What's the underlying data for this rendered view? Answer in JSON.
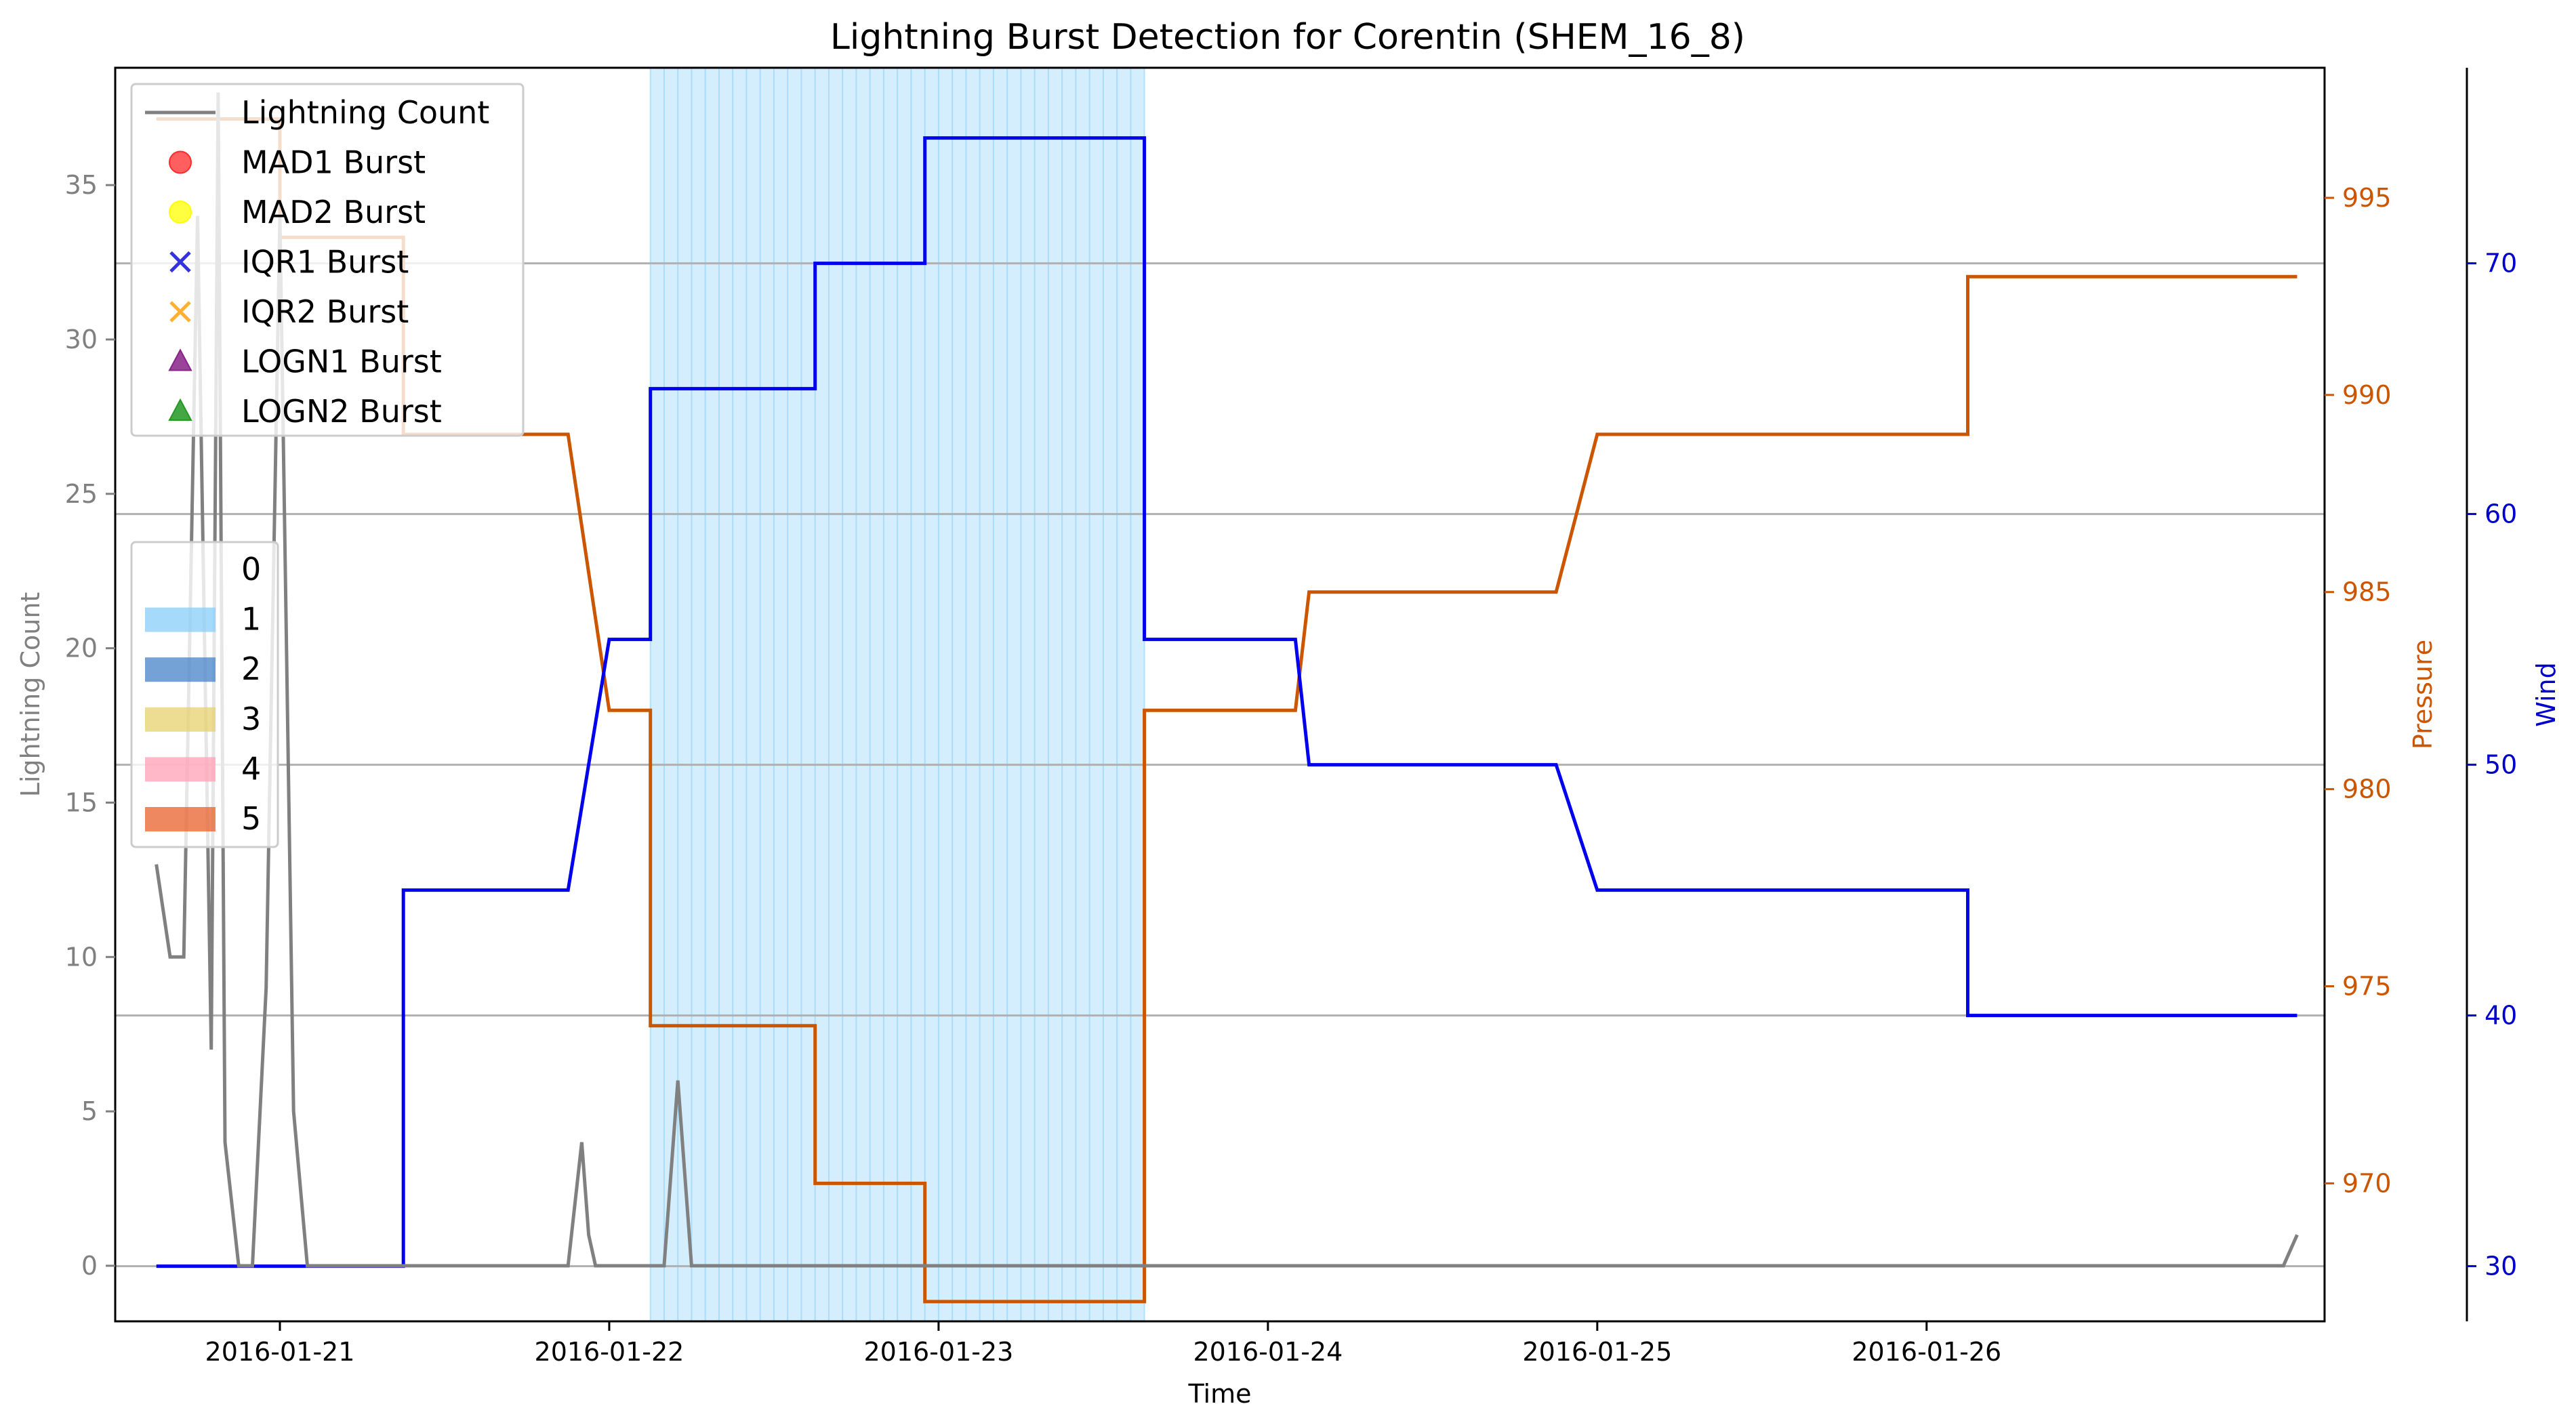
{
  "chart_data": {
    "type": "line",
    "title": "Lightning Burst Detection for Corentin (SHEM_16_8)",
    "xlabel": "Time",
    "ylabel_left": "Lightning Count",
    "ylabel_pressure": "Pressure",
    "ylabel_wind": "Wind",
    "x_ticks": [
      "2016-01-21",
      "2016-01-22",
      "2016-01-23",
      "2016-01-24",
      "2016-01-25",
      "2016-01-26"
    ],
    "x_range": [
      "2016-01-20 12:00",
      "2016-01-27 05:00"
    ],
    "y_left": {
      "range": [
        -1.8,
        38.8
      ],
      "ticks": [
        0,
        5,
        10,
        15,
        20,
        25,
        30,
        35
      ]
    },
    "y_pressure": {
      "range": [
        966.5,
        998.3
      ],
      "ticks": [
        970,
        975,
        980,
        985,
        990,
        995
      ]
    },
    "y_wind": {
      "range": [
        27.8,
        77.8
      ],
      "ticks": [
        30,
        40,
        50,
        60,
        70
      ]
    },
    "grid": "horizontal lines at wind ticks",
    "colors": {
      "lightning": "#808080",
      "pressure": "#cc5500",
      "wind": "#0000ee",
      "category1": "#87cefa",
      "category2": "#4682c8",
      "category3": "#e6d26e",
      "category4": "#ffa0b4",
      "category5": "#e8602c"
    },
    "category_shading": [
      {
        "category": 1,
        "start": "2016-01-22 03:00",
        "end": "2016-01-23 15:00"
      }
    ],
    "series": [
      {
        "name": "Lightning Count",
        "axis": "left",
        "x": [
          "2016-01-20 15:00",
          "2016-01-20 16:00",
          "2016-01-20 17:00",
          "2016-01-20 18:00",
          "2016-01-20 19:00",
          "2016-01-20 19:30",
          "2016-01-20 20:00",
          "2016-01-20 21:00",
          "2016-01-20 22:00",
          "2016-01-20 23:00",
          "2016-01-21 00:00",
          "2016-01-21 01:00",
          "2016-01-21 02:00",
          "2016-01-21 03:00",
          "2016-01-21 21:00",
          "2016-01-21 22:00",
          "2016-01-21 22:30",
          "2016-01-21 23:00",
          "2016-01-22 04:00",
          "2016-01-22 05:00",
          "2016-01-22 06:00",
          "2016-01-22 07:00",
          "2016-01-27 02:00",
          "2016-01-27 03:00"
        ],
        "values": [
          13,
          10,
          10,
          34,
          7,
          38,
          4,
          0,
          0,
          9,
          34,
          5,
          0,
          0,
          0,
          4,
          1,
          0,
          0,
          6,
          0,
          0,
          0,
          1
        ]
      },
      {
        "name": "Pressure",
        "axis": "pressure",
        "x": [
          "2016-01-20 15:00",
          "2016-01-20 24:00",
          "2016-01-21 00:00",
          "2016-01-21 09:00",
          "2016-01-21 09:00",
          "2016-01-21 21:00",
          "2016-01-22 00:00",
          "2016-01-22 03:00",
          "2016-01-22 03:00",
          "2016-01-22 15:00",
          "2016-01-22 15:00",
          "2016-01-22 23:00",
          "2016-01-22 23:00",
          "2016-01-23 15:00",
          "2016-01-23 15:00",
          "2016-01-24 02:00",
          "2016-01-24 03:00",
          "2016-01-24 21:00",
          "2016-01-25 00:00",
          "2016-01-26 03:00",
          "2016-01-26 03:00",
          "2016-01-27 03:00"
        ],
        "values": [
          997,
          997,
          994,
          994,
          989,
          989,
          982,
          982,
          974,
          974,
          970,
          970,
          967,
          967,
          982,
          982,
          985,
          985,
          989,
          989,
          993,
          993
        ]
      },
      {
        "name": "Wind",
        "axis": "wind",
        "x": [
          "2016-01-20 15:00",
          "2016-01-21 09:00",
          "2016-01-21 09:00",
          "2016-01-21 21:00",
          "2016-01-22 00:00",
          "2016-01-22 03:00",
          "2016-01-22 03:00",
          "2016-01-22 15:00",
          "2016-01-22 15:00",
          "2016-01-22 23:00",
          "2016-01-22 23:00",
          "2016-01-23 15:00",
          "2016-01-23 15:00",
          "2016-01-24 02:00",
          "2016-01-24 03:00",
          "2016-01-24 21:00",
          "2016-01-25 00:00",
          "2016-01-26 03:00",
          "2016-01-26 03:00",
          "2016-01-27 03:00"
        ],
        "values": [
          30,
          30,
          45,
          45,
          55,
          55,
          65,
          65,
          70,
          70,
          75,
          75,
          55,
          55,
          50,
          50,
          45,
          45,
          40,
          40
        ]
      }
    ],
    "legend_markers": {
      "placement": "top-left",
      "entries": [
        {
          "label": "Lightning Count",
          "marker": "line",
          "color": "#808080"
        },
        {
          "label": "MAD1 Burst",
          "marker": "circle",
          "color": "#ff2a2a"
        },
        {
          "label": "MAD2 Burst",
          "marker": "circle",
          "color": "#ffff00"
        },
        {
          "label": "IQR1 Burst",
          "marker": "x",
          "color": "#3333dd"
        },
        {
          "label": "IQR2 Burst",
          "marker": "x",
          "color": "#ffb030"
        },
        {
          "label": "LOGN1 Burst",
          "marker": "triangle",
          "color": "#882288"
        },
        {
          "label": "LOGN2 Burst",
          "marker": "triangle",
          "color": "#229922"
        }
      ]
    },
    "legend_categories": {
      "placement": "center-left",
      "entries": [
        {
          "label": "0",
          "color": ""
        },
        {
          "label": "1",
          "color": "#87cefa"
        },
        {
          "label": "2",
          "color": "#4682c8"
        },
        {
          "label": "3",
          "color": "#e6d26e"
        },
        {
          "label": "4",
          "color": "#ffa0b4"
        },
        {
          "label": "5",
          "color": "#e8602c"
        }
      ]
    }
  }
}
